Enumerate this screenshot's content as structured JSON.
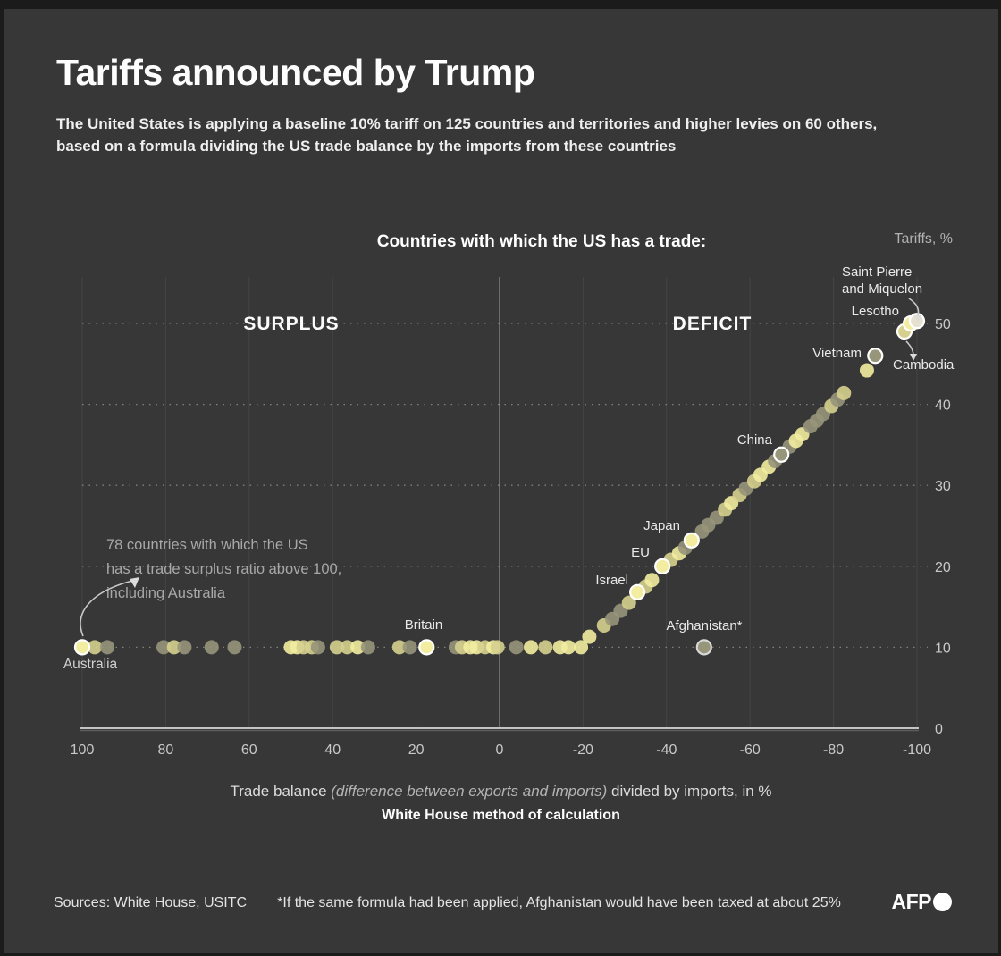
{
  "header": {
    "title": "Tariffs announced by Trump",
    "subtitle_line1": "The United States is applying a baseline 10% tariff on 125 countries and territories and higher levies on 60 others,",
    "subtitle_line2": "based on a formula dividing the US trade balance by the imports from these countries"
  },
  "chart": {
    "title": "Countries with which the US has a trade:",
    "y_unit_label": "Tariffs, %",
    "zone_surplus": "SURPLUS",
    "zone_deficit": "DEFICIT",
    "annotation_78_lines": [
      "78 countries with which the US",
      "has a trade surplus ratio above 100,",
      "including Australia"
    ]
  },
  "caption": {
    "part1": "Trade balance ",
    "part2_italic": "(difference between exports and imports)",
    "part3": " divided by imports, in %",
    "bold_line": "White House method of calculation"
  },
  "footer": {
    "sources": "Sources:  White House, USITC",
    "footnote": "*If the same formula had been applied,  Afghanistan would have been taxed at about 25%",
    "logo": "AFP"
  },
  "chart_data": {
    "type": "scatter",
    "title": "Countries with which the US has a trade:",
    "xlabel": "Trade balance (difference between exports and imports) divided by imports, in %",
    "ylabel": "Tariffs, %",
    "x_range": [
      100,
      -100
    ],
    "y_range": [
      0,
      50
    ],
    "x_ticks": [
      100,
      80,
      60,
      40,
      20,
      0,
      -20,
      -40,
      -60,
      -80,
      -100
    ],
    "y_ticks": [
      0,
      10,
      20,
      30,
      40,
      50
    ],
    "grid": "dotted-horizontal, faint-vertical",
    "background": "#373737",
    "palette": {
      "b": "#f2eda0",
      "m": "#d6d08e",
      "o": "#97957a",
      "p": "#e6e2cf"
    },
    "ring_color": "#ffffff",
    "ring_color_muted": "#d8d8d8",
    "points": [
      [
        97,
        10,
        "m"
      ],
      [
        94,
        10,
        "o"
      ],
      [
        80.5,
        10,
        "o"
      ],
      [
        78,
        10,
        "m"
      ],
      [
        75.5,
        10,
        "o"
      ],
      [
        69,
        10,
        "o"
      ],
      [
        63.5,
        10,
        "o"
      ],
      [
        50,
        10,
        "b"
      ],
      [
        48.5,
        10,
        "b"
      ],
      [
        47,
        10,
        "m"
      ],
      [
        45,
        10,
        "m"
      ],
      [
        43.5,
        10,
        "o"
      ],
      [
        39,
        10,
        "m"
      ],
      [
        36.5,
        10,
        "m"
      ],
      [
        34,
        10,
        "b"
      ],
      [
        31.5,
        10,
        "o"
      ],
      [
        24,
        10,
        "m"
      ],
      [
        21.5,
        10,
        "o"
      ],
      [
        10.5,
        10,
        "o"
      ],
      [
        9,
        10,
        "m"
      ],
      [
        7,
        10,
        "b"
      ],
      [
        5.5,
        10,
        "b"
      ],
      [
        3.5,
        10,
        "m"
      ],
      [
        1.5,
        10,
        "b"
      ],
      [
        0.5,
        10,
        "m"
      ],
      [
        -4,
        10,
        "o"
      ],
      [
        -7.5,
        10,
        "b"
      ],
      [
        -11,
        10,
        "m"
      ],
      [
        -14.5,
        10,
        "b"
      ],
      [
        -16.5,
        10,
        "b"
      ],
      [
        -19.5,
        10,
        "b"
      ],
      [
        -21.5,
        11.3,
        "b"
      ],
      [
        -25,
        12.7,
        "m"
      ],
      [
        -27,
        13.5,
        "o"
      ],
      [
        -29,
        14.5,
        "o"
      ],
      [
        -31,
        15.5,
        "m"
      ],
      [
        -35,
        17.5,
        "m"
      ],
      [
        -36.5,
        18.3,
        "b"
      ],
      [
        -41,
        20.8,
        "m"
      ],
      [
        -43,
        21.6,
        "b"
      ],
      [
        -44.5,
        22.3,
        "o"
      ],
      [
        -48.5,
        24.3,
        "o"
      ],
      [
        -50,
        25.1,
        "o"
      ],
      [
        -52,
        26,
        "o"
      ],
      [
        -54,
        27,
        "m"
      ],
      [
        -55.5,
        27.8,
        "b"
      ],
      [
        -57.5,
        28.8,
        "m"
      ],
      [
        -59,
        29.6,
        "o"
      ],
      [
        -61,
        30.5,
        "m"
      ],
      [
        -62.5,
        31.3,
        "b"
      ],
      [
        -64.5,
        32.3,
        "b"
      ],
      [
        -66,
        33,
        "o"
      ],
      [
        -69.5,
        34.8,
        "o"
      ],
      [
        -71,
        35.5,
        "b"
      ],
      [
        -72.5,
        36.3,
        "b"
      ],
      [
        -74.5,
        37.3,
        "o"
      ],
      [
        -76,
        38,
        "o"
      ],
      [
        -77.5,
        38.8,
        "o"
      ],
      [
        -79.5,
        39.8,
        "m"
      ],
      [
        -81,
        40.6,
        "o"
      ],
      [
        -82.5,
        41.4,
        "m"
      ],
      [
        -88,
        44.2,
        "b"
      ]
    ],
    "labeled": [
      {
        "name": "Australia",
        "x": 100,
        "y": 10,
        "c": "b",
        "ring": "white"
      },
      {
        "name": "Britain",
        "x": 17.5,
        "y": 10,
        "c": "b",
        "ring": "white"
      },
      {
        "name": "Afghanistan*",
        "x": -49,
        "y": 10,
        "c": "o",
        "ring": "muted"
      },
      {
        "name": "Israel",
        "x": -33,
        "y": 16.8,
        "c": "b",
        "ring": "white"
      },
      {
        "name": "EU",
        "x": -39,
        "y": 20,
        "c": "b",
        "ring": "white"
      },
      {
        "name": "Japan",
        "x": -46,
        "y": 23.2,
        "c": "b",
        "ring": "white"
      },
      {
        "name": "China",
        "x": -67.5,
        "y": 33.8,
        "c": "o",
        "ring": "white"
      },
      {
        "name": "Vietnam",
        "x": -90,
        "y": 46,
        "c": "o",
        "ring": "white"
      },
      {
        "name": "Cambodia",
        "x": -97,
        "y": 49,
        "c": "m",
        "ring": "white"
      },
      {
        "name": "Lesotho",
        "x": -98.5,
        "y": 50,
        "c": "b",
        "ring": "white"
      },
      {
        "name": "Saint Pierre and Miquelon",
        "x": -100,
        "y": 50.3,
        "c": "p",
        "ring": "white",
        "lines": [
          "Saint Pierre",
          "and Miquelon"
        ]
      }
    ]
  }
}
